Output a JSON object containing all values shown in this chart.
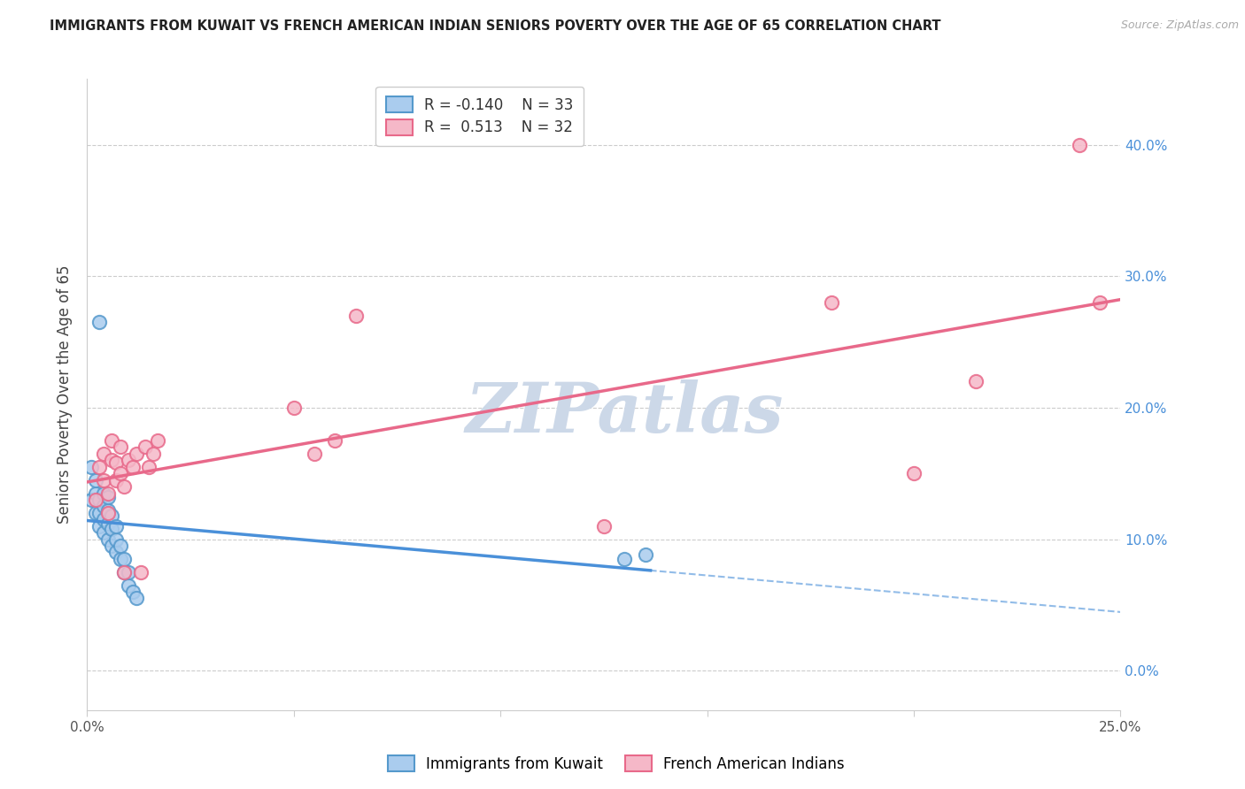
{
  "title": "IMMIGRANTS FROM KUWAIT VS FRENCH AMERICAN INDIAN SENIORS POVERTY OVER THE AGE OF 65 CORRELATION CHART",
  "source": "Source: ZipAtlas.com",
  "ylabel": "Seniors Poverty Over the Age of 65",
  "watermark": "ZIPatlas",
  "legend_label_blue": "Immigrants from Kuwait",
  "legend_label_pink": "French American Indians",
  "legend_blue_r": "-0.140",
  "legend_blue_n": "33",
  "legend_pink_r": "0.513",
  "legend_pink_n": "32",
  "xlim_min": 0.0,
  "xlim_max": 0.25,
  "ylim_min": -0.03,
  "ylim_max": 0.45,
  "ytick_vals": [
    0.0,
    0.1,
    0.2,
    0.3,
    0.4
  ],
  "xtick_vals": [
    0.0,
    0.05,
    0.1,
    0.15,
    0.2,
    0.25
  ],
  "blue_x": [
    0.001,
    0.001,
    0.002,
    0.002,
    0.002,
    0.003,
    0.003,
    0.003,
    0.003,
    0.004,
    0.004,
    0.004,
    0.004,
    0.005,
    0.005,
    0.005,
    0.005,
    0.006,
    0.006,
    0.006,
    0.007,
    0.007,
    0.007,
    0.008,
    0.008,
    0.009,
    0.009,
    0.01,
    0.01,
    0.011,
    0.012,
    0.13,
    0.135
  ],
  "blue_y": [
    0.13,
    0.155,
    0.12,
    0.135,
    0.145,
    0.11,
    0.12,
    0.13,
    0.265,
    0.105,
    0.115,
    0.125,
    0.135,
    0.1,
    0.112,
    0.122,
    0.132,
    0.095,
    0.108,
    0.118,
    0.09,
    0.1,
    0.11,
    0.085,
    0.095,
    0.075,
    0.085,
    0.065,
    0.075,
    0.06,
    0.055,
    0.085,
    0.088
  ],
  "pink_x": [
    0.002,
    0.003,
    0.004,
    0.004,
    0.005,
    0.005,
    0.006,
    0.006,
    0.007,
    0.007,
    0.008,
    0.008,
    0.009,
    0.009,
    0.01,
    0.011,
    0.012,
    0.013,
    0.014,
    0.015,
    0.016,
    0.017,
    0.05,
    0.055,
    0.06,
    0.065,
    0.125,
    0.18,
    0.2,
    0.215,
    0.24,
    0.245
  ],
  "pink_y": [
    0.13,
    0.155,
    0.145,
    0.165,
    0.12,
    0.135,
    0.16,
    0.175,
    0.145,
    0.158,
    0.15,
    0.17,
    0.075,
    0.14,
    0.16,
    0.155,
    0.165,
    0.075,
    0.17,
    0.155,
    0.165,
    0.175,
    0.2,
    0.165,
    0.175,
    0.27,
    0.11,
    0.28,
    0.15,
    0.22,
    0.4,
    0.28
  ],
  "blue_color": "#aaccee",
  "blue_edge": "#5599cc",
  "pink_color": "#f5b8c8",
  "pink_edge": "#e8698a",
  "blue_line_color": "#4a90d9",
  "pink_line_color": "#e8698a",
  "grid_color": "#cccccc",
  "bg_color": "#ffffff",
  "title_color": "#222222",
  "right_tick_color": "#4a90d9",
  "watermark_color": "#ccd8e8"
}
